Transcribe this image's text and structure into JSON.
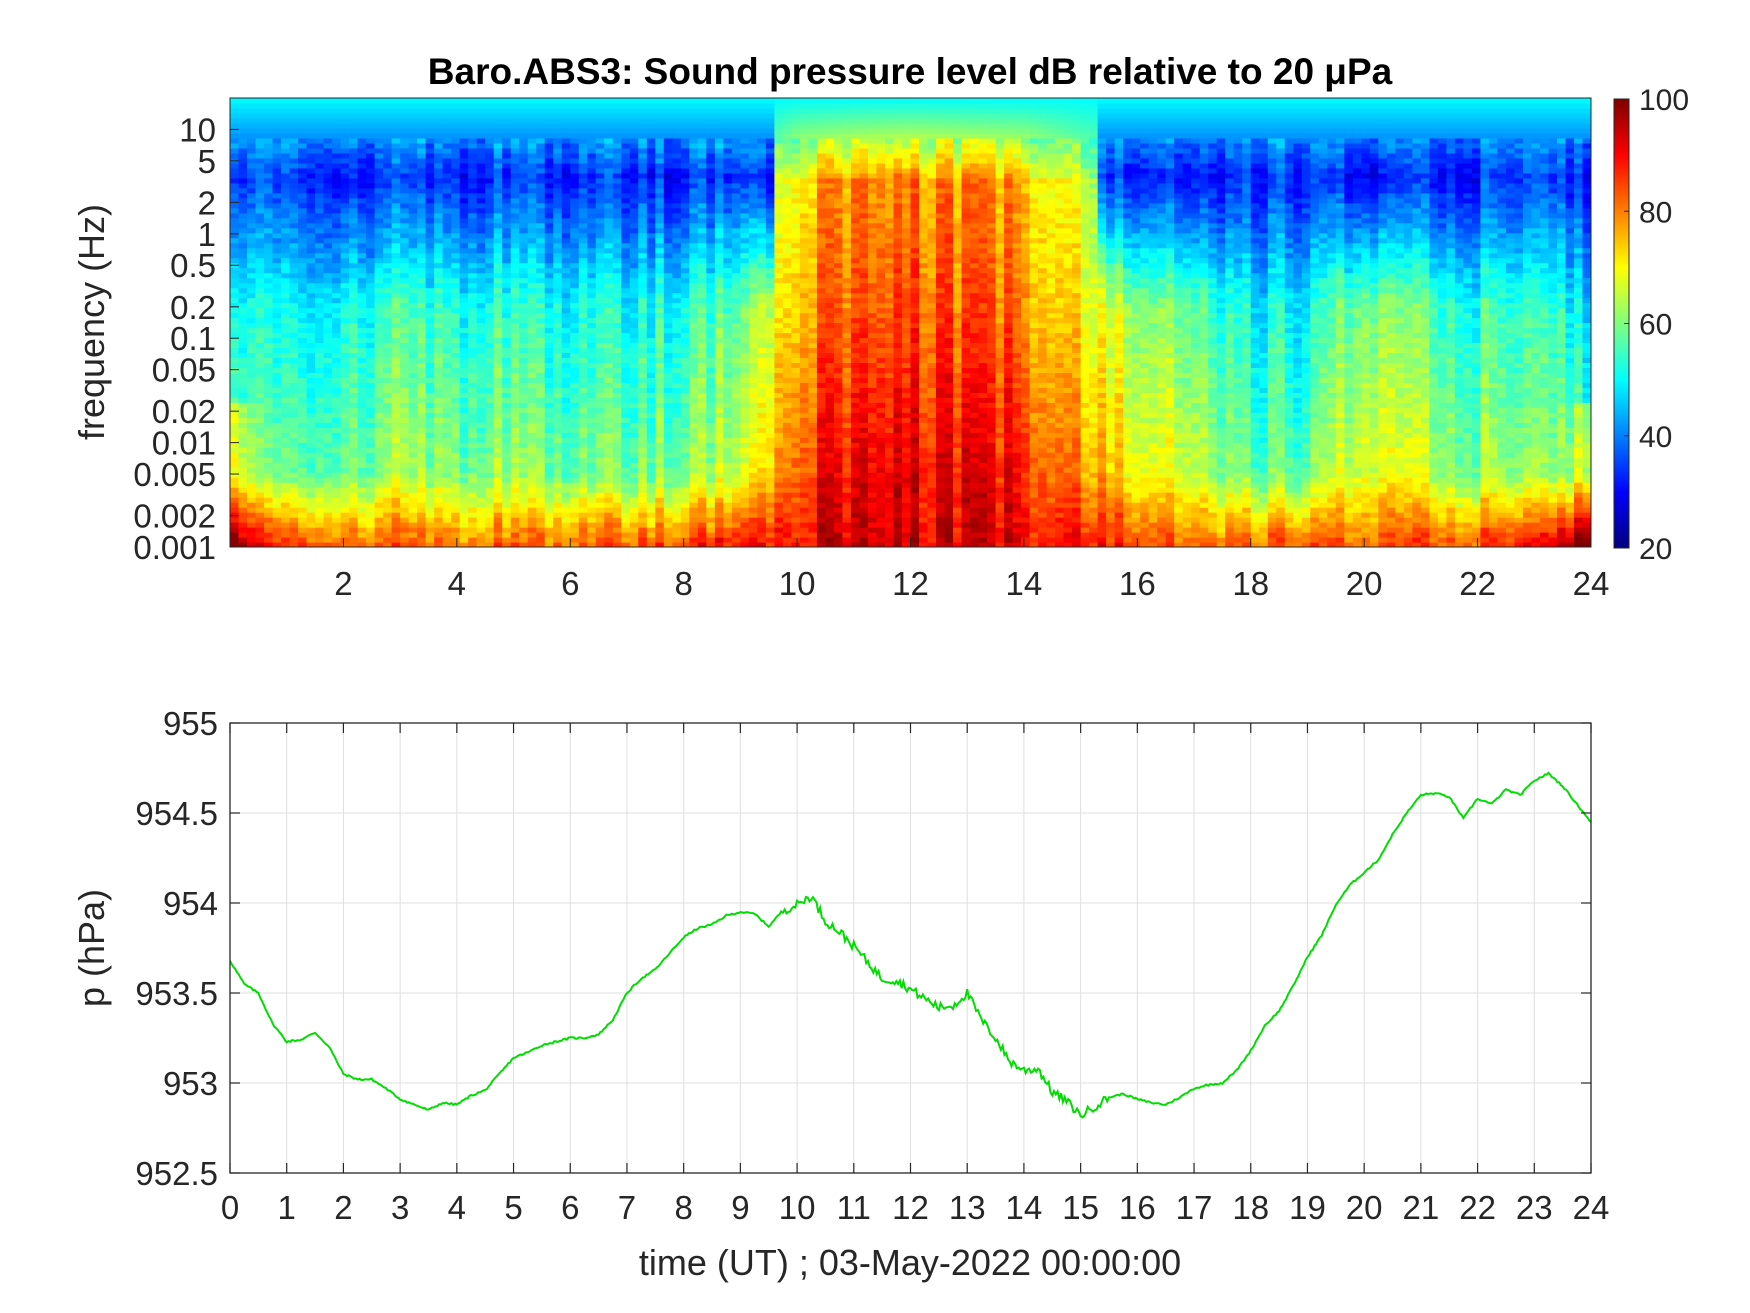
{
  "chart_data": [
    {
      "type": "heatmap",
      "title": "Baro.ABS3: Sound pressure level dB relative to 20 μPa",
      "xlabel": "",
      "ylabel": "frequency (Hz)",
      "y_scale": "log",
      "xlim": [
        0,
        24
      ],
      "ylim": [
        0.001,
        20
      ],
      "x_ticks": [
        "2",
        "4",
        "6",
        "8",
        "10",
        "12",
        "14",
        "16",
        "18",
        "20",
        "22",
        "24"
      ],
      "x_tick_values": [
        2,
        4,
        6,
        8,
        10,
        12,
        14,
        16,
        18,
        20,
        22,
        24
      ],
      "y_ticks": [
        "0.001",
        "0.002",
        "0.005",
        "0.01",
        "0.02",
        "0.05",
        "0.1",
        "0.2",
        "0.5",
        "1",
        "2",
        "5",
        "10"
      ],
      "y_tick_values": [
        0.001,
        0.002,
        0.005,
        0.01,
        0.02,
        0.05,
        0.1,
        0.2,
        0.5,
        1,
        2,
        5,
        10
      ],
      "colormap": "jet",
      "colorbar": {
        "min": 20,
        "max": 100,
        "ticks": [
          "20",
          "40",
          "60",
          "80",
          "100"
        ],
        "tick_values": [
          20,
          40,
          60,
          80,
          100
        ]
      },
      "grid": false,
      "time_hours": [
        0,
        1,
        2,
        3,
        4,
        5,
        6,
        7,
        8,
        9,
        10,
        11,
        12,
        13,
        14,
        15,
        16,
        17,
        18,
        19,
        20,
        21,
        22,
        23,
        24
      ],
      "low_freq_level_db": [
        90,
        86,
        84,
        83,
        82,
        82,
        83,
        84,
        86,
        88,
        92,
        93,
        93,
        92,
        91,
        89,
        86,
        84,
        84,
        84,
        85,
        86,
        86,
        88,
        98
      ],
      "mid_freq_level_db": [
        52,
        50,
        54,
        56,
        55,
        55,
        53,
        53,
        55,
        58,
        80,
        84,
        86,
        84,
        82,
        72,
        64,
        62,
        52,
        52,
        66,
        60,
        56,
        54,
        52
      ],
      "color_stops": [
        {
          "db": 20,
          "color": "#00007f"
        },
        {
          "db": 30,
          "color": "#0000ff"
        },
        {
          "db": 40,
          "color": "#007fff"
        },
        {
          "db": 50,
          "color": "#00ffff"
        },
        {
          "db": 60,
          "color": "#7fff7f"
        },
        {
          "db": 70,
          "color": "#ffff00"
        },
        {
          "db": 80,
          "color": "#ff7f00"
        },
        {
          "db": 90,
          "color": "#ff0000"
        },
        {
          "db": 100,
          "color": "#7f0000"
        }
      ]
    },
    {
      "type": "line",
      "title": "",
      "xlabel": "time (UT) ; 03-May-2022 00:00:00",
      "ylabel": "p (hPa)",
      "xlim": [
        0,
        24
      ],
      "ylim": [
        952.5,
        955
      ],
      "x_ticks": [
        "0",
        "1",
        "2",
        "3",
        "4",
        "5",
        "6",
        "7",
        "8",
        "9",
        "10",
        "11",
        "12",
        "13",
        "14",
        "15",
        "16",
        "17",
        "18",
        "19",
        "20",
        "21",
        "22",
        "23",
        "24"
      ],
      "x_tick_values": [
        0,
        1,
        2,
        3,
        4,
        5,
        6,
        7,
        8,
        9,
        10,
        11,
        12,
        13,
        14,
        15,
        16,
        17,
        18,
        19,
        20,
        21,
        22,
        23,
        24
      ],
      "y_ticks": [
        "952.5",
        "953",
        "953.5",
        "954",
        "954.5",
        "955"
      ],
      "y_tick_values": [
        952.5,
        953,
        953.5,
        954,
        954.5,
        955
      ],
      "grid": true,
      "series": [
        {
          "color": "#00dd00",
          "x": [
            0,
            0.25,
            0.5,
            0.75,
            1,
            1.25,
            1.5,
            1.75,
            2,
            2.25,
            2.5,
            2.75,
            3,
            3.25,
            3.5,
            3.75,
            4,
            4.25,
            4.5,
            4.75,
            5,
            5.25,
            5.5,
            5.75,
            6,
            6.25,
            6.5,
            6.75,
            7,
            7.25,
            7.5,
            7.75,
            8,
            8.25,
            8.5,
            8.75,
            9,
            9.25,
            9.5,
            9.75,
            10,
            10.25,
            10.5,
            10.75,
            11,
            11.25,
            11.5,
            11.75,
            12,
            12.25,
            12.5,
            12.75,
            13,
            13.25,
            13.5,
            13.75,
            14,
            14.25,
            14.5,
            14.75,
            15,
            15.25,
            15.5,
            15.75,
            16,
            16.25,
            16.5,
            16.75,
            17,
            17.25,
            17.5,
            17.75,
            18,
            18.25,
            18.5,
            18.75,
            19,
            19.25,
            19.5,
            19.75,
            20,
            20.25,
            20.5,
            20.75,
            21,
            21.25,
            21.5,
            21.75,
            22,
            22.25,
            22.5,
            22.75,
            23,
            23.25,
            23.5,
            23.75,
            24
          ],
          "y": [
            953.68,
            953.55,
            953.5,
            953.33,
            953.23,
            953.24,
            953.28,
            953.2,
            953.05,
            953.02,
            953.02,
            952.97,
            952.91,
            952.88,
            952.85,
            952.89,
            952.88,
            952.93,
            952.96,
            953.05,
            953.14,
            953.17,
            953.21,
            953.23,
            953.25,
            953.25,
            953.27,
            953.35,
            953.5,
            953.58,
            953.63,
            953.72,
            953.81,
            953.86,
            953.88,
            953.93,
            953.95,
            953.94,
            953.87,
            953.96,
            953.99,
            954.04,
            953.9,
            953.84,
            953.76,
            953.67,
            953.58,
            953.57,
            953.52,
            953.47,
            953.42,
            953.43,
            953.5,
            953.35,
            953.25,
            953.12,
            953.07,
            953.08,
            952.95,
            952.9,
            952.82,
            952.87,
            952.92,
            952.94,
            952.91,
            952.89,
            952.88,
            952.92,
            952.97,
            952.99,
            953.0,
            953.07,
            953.18,
            953.32,
            953.4,
            953.54,
            953.7,
            953.82,
            953.99,
            954.1,
            954.17,
            954.24,
            954.38,
            954.5,
            954.6,
            954.61,
            954.59,
            954.47,
            954.58,
            954.55,
            954.63,
            954.6,
            954.68,
            954.72,
            954.65,
            954.55,
            954.45
          ]
        }
      ]
    }
  ]
}
